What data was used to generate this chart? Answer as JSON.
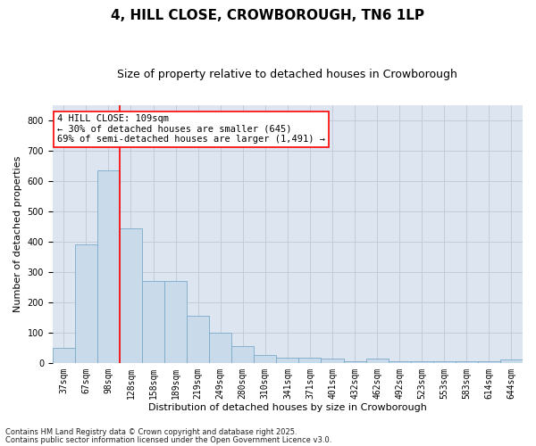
{
  "title": "4, HILL CLOSE, CROWBOROUGH, TN6 1LP",
  "subtitle": "Size of property relative to detached houses in Crowborough",
  "xlabel": "Distribution of detached houses by size in Crowborough",
  "ylabel": "Number of detached properties",
  "categories": [
    "37sqm",
    "67sqm",
    "98sqm",
    "128sqm",
    "158sqm",
    "189sqm",
    "219sqm",
    "249sqm",
    "280sqm",
    "310sqm",
    "341sqm",
    "371sqm",
    "401sqm",
    "432sqm",
    "462sqm",
    "492sqm",
    "523sqm",
    "553sqm",
    "583sqm",
    "614sqm",
    "644sqm"
  ],
  "values": [
    50,
    390,
    635,
    445,
    270,
    270,
    155,
    100,
    55,
    25,
    18,
    18,
    13,
    5,
    13,
    5,
    5,
    5,
    5,
    5,
    10
  ],
  "bar_color": "#c9daea",
  "bar_edge_color": "#7aaac8",
  "vline_x": 2.5,
  "vline_color": "red",
  "annotation_text": "4 HILL CLOSE: 109sqm\n← 30% of detached houses are smaller (645)\n69% of semi-detached houses are larger (1,491) →",
  "annotation_box_facecolor": "white",
  "annotation_box_edgecolor": "red",
  "ylim": [
    0,
    850
  ],
  "yticks": [
    0,
    100,
    200,
    300,
    400,
    500,
    600,
    700,
    800
  ],
  "grid_color": "#c0c8d8",
  "bg_color": "#dce5f0",
  "footnote1": "Contains HM Land Registry data © Crown copyright and database right 2025.",
  "footnote2": "Contains public sector information licensed under the Open Government Licence v3.0.",
  "title_fontsize": 11,
  "subtitle_fontsize": 9,
  "xlabel_fontsize": 8,
  "ylabel_fontsize": 8,
  "tick_fontsize": 7,
  "annotation_fontsize": 7.5,
  "footnote_fontsize": 6
}
